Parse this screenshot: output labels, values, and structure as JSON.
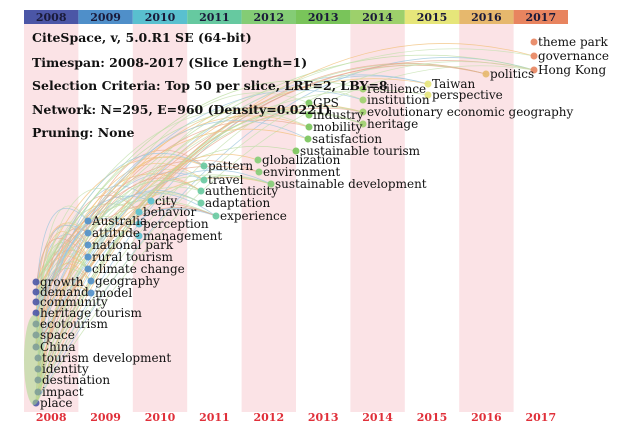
{
  "timeline": {
    "years": [
      "2008",
      "2009",
      "2010",
      "2011",
      "2012",
      "2013",
      "2014",
      "2015",
      "2016",
      "2017"
    ],
    "bar_colors": [
      "#4b56a6",
      "#4f8fc9",
      "#59c0cf",
      "#66c9a0",
      "#84cc75",
      "#79c45a",
      "#9dd06b",
      "#e6e67a",
      "#e6b86d",
      "#e8845f"
    ]
  },
  "info": {
    "software": "CiteSpace, v, 5.0.R1 SE (64-bit)",
    "timespan": "Timespan: 2008-2017 (Slice Length=1)",
    "selection": "Selection Criteria: Top 50 per slice, LRF=2, LBY=8",
    "network": "Network: N=295, E=960 (Density=0.0221)",
    "pruning": "Pruning: None"
  },
  "keywords": [
    {
      "label": "place",
      "year": "2008"
    },
    {
      "label": "impact",
      "year": "2008"
    },
    {
      "label": "destination",
      "year": "2008"
    },
    {
      "label": "identity",
      "year": "2008"
    },
    {
      "label": "tourism development",
      "year": "2008"
    },
    {
      "label": "China",
      "year": "2008"
    },
    {
      "label": "space",
      "year": "2008"
    },
    {
      "label": "ecotourism",
      "year": "2008"
    },
    {
      "label": "heritage tourism",
      "year": "2008"
    },
    {
      "label": "community",
      "year": "2008"
    },
    {
      "label": "demand",
      "year": "2008"
    },
    {
      "label": "growth",
      "year": "2008"
    },
    {
      "label": "model",
      "year": "2009"
    },
    {
      "label": "geography",
      "year": "2009"
    },
    {
      "label": "climate change",
      "year": "2009"
    },
    {
      "label": "rural tourism",
      "year": "2009"
    },
    {
      "label": "national park",
      "year": "2009"
    },
    {
      "label": "attitude",
      "year": "2009"
    },
    {
      "label": "Australia",
      "year": "2009"
    },
    {
      "label": "management",
      "year": "2010"
    },
    {
      "label": "perception",
      "year": "2010"
    },
    {
      "label": "behavior",
      "year": "2010"
    },
    {
      "label": "city",
      "year": "2010"
    },
    {
      "label": "experience",
      "year": "2011"
    },
    {
      "label": "adaptation",
      "year": "2011"
    },
    {
      "label": "authenticity",
      "year": "2011"
    },
    {
      "label": "travel",
      "year": "2011"
    },
    {
      "label": "pattern",
      "year": "2011"
    },
    {
      "label": "sustainable development",
      "year": "2012"
    },
    {
      "label": "environment",
      "year": "2012"
    },
    {
      "label": "globalization",
      "year": "2012"
    },
    {
      "label": "sustainable tourism",
      "year": "2013"
    },
    {
      "label": "satisfaction",
      "year": "2013"
    },
    {
      "label": "mobility",
      "year": "2013"
    },
    {
      "label": "industry",
      "year": "2013"
    },
    {
      "label": "GPS",
      "year": "2013"
    },
    {
      "label": "heritage",
      "year": "2014"
    },
    {
      "label": "evolutionary economic geography",
      "year": "2014"
    },
    {
      "label": "institution",
      "year": "2014"
    },
    {
      "label": "resilience",
      "year": "2014"
    },
    {
      "label": "perspective",
      "year": "2015"
    },
    {
      "label": "Taiwan",
      "year": "2015"
    },
    {
      "label": "politics",
      "year": "2016"
    },
    {
      "label": "Hong Kong",
      "year": "2017"
    },
    {
      "label": "governance",
      "year": "2017"
    },
    {
      "label": "theme park",
      "year": "2017"
    }
  ]
}
